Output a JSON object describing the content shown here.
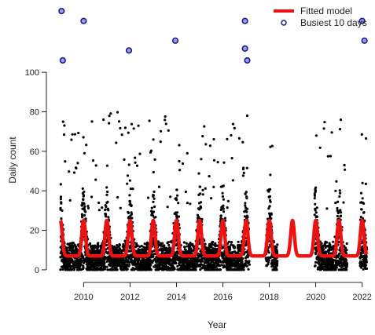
{
  "chart_data": {
    "type": "scatter",
    "title": "",
    "xlabel": "Year",
    "ylabel": "Daily count",
    "xlim": [
      2008.7,
      2022.35
    ],
    "ylim": [
      -4,
      135
    ],
    "x_ticks": [
      2010,
      2012,
      2014,
      2016,
      2018,
      2020,
      2022
    ],
    "y_ticks": [
      0,
      20,
      40,
      60,
      80,
      100
    ],
    "grid": false,
    "legend": {
      "position": "top-right",
      "entries": [
        {
          "label": "Fitted model",
          "kind": "line",
          "color": "#ee1111"
        },
        {
          "label": "Busiest 10 days",
          "kind": "open-circle",
          "color": "#1a1a99"
        }
      ]
    },
    "colors": {
      "points": "#000000",
      "model": "#ee1111",
      "busiest": "#1a1a99"
    },
    "observation_coverage": {
      "period": [
        2009.0,
        2022.2
      ],
      "gaps": [
        [
          2017.15,
          2017.85
        ],
        [
          2018.35,
          2019.95
        ],
        [
          2021.35,
          2021.9
        ]
      ]
    },
    "fitted_model": {
      "baseline": 7,
      "annual_peak": 25,
      "peak_time_of_year": 0.0,
      "period": [
        2009.0,
        2022.2
      ]
    },
    "series": [
      {
        "name": "Busiest 10 days",
        "kind": "marked",
        "x": [
          2009.05,
          2009.1,
          2010.0,
          2011.95,
          2013.95,
          2016.95,
          2016.95,
          2017.05,
          2022.0,
          2022.1
        ],
        "y": [
          131,
          106,
          126,
          111,
          116,
          126,
          112,
          106,
          126,
          116
        ]
      }
    ]
  }
}
